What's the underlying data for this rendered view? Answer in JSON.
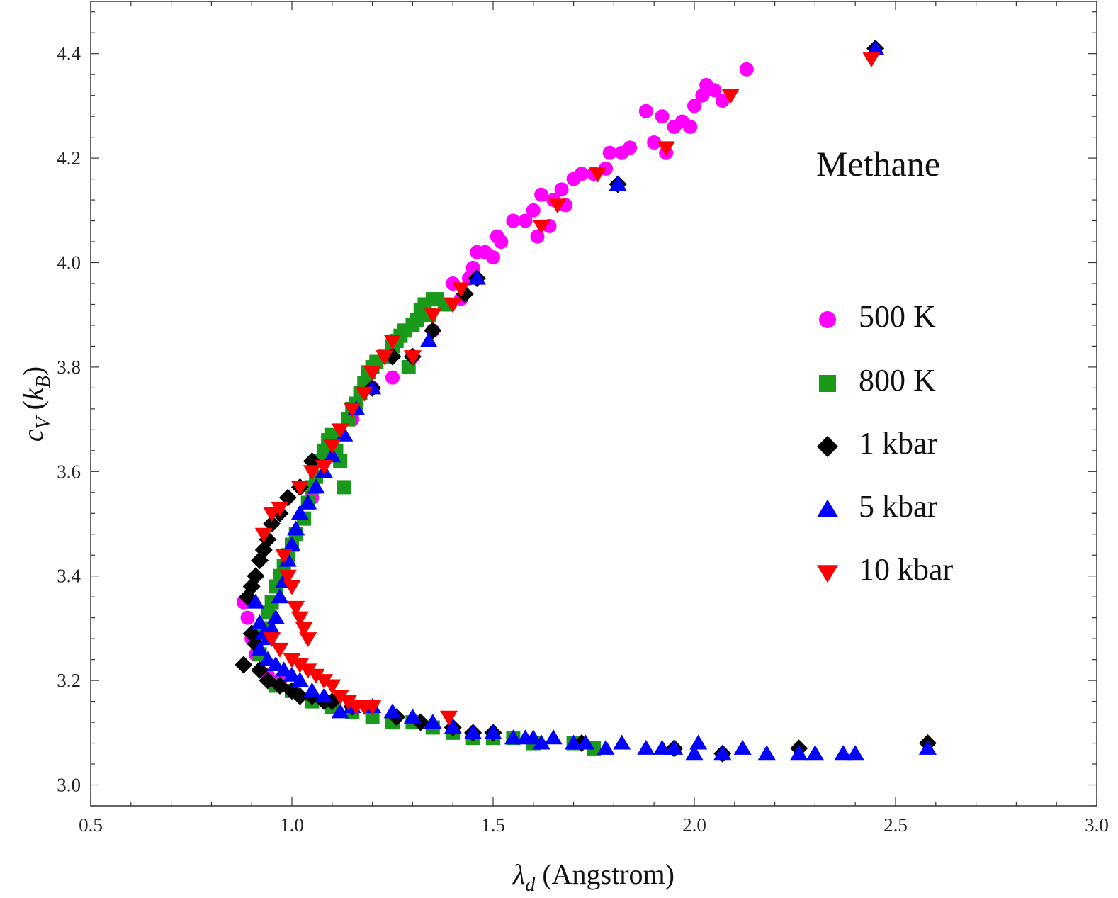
{
  "chart_data": {
    "type": "scatter",
    "title": "",
    "annotation": "Methane",
    "xlabel": {
      "symbol": "λ",
      "sub": "d",
      "rest": " (Angstrom)"
    },
    "ylabel": {
      "symbol": "c",
      "sub": "V",
      "rest_open": " (",
      "k": "k",
      "ksub": "B",
      "rest_close": ")"
    },
    "xlim": [
      0.5,
      3.0
    ],
    "ylim": [
      2.96,
      4.5
    ],
    "x_ticks": [
      {
        "v": 0.5,
        "label": "0.5"
      },
      {
        "v": 1.0,
        "label": "1.0"
      },
      {
        "v": 1.5,
        "label": "1.5"
      },
      {
        "v": 2.0,
        "label": "2.0"
      },
      {
        "v": 2.5,
        "label": "2.5"
      },
      {
        "v": 3.0,
        "label": "3.0"
      }
    ],
    "y_ticks": [
      {
        "v": 3.0,
        "label": "3.0"
      },
      {
        "v": 3.2,
        "label": "3.2"
      },
      {
        "v": 3.4,
        "label": "3.4"
      },
      {
        "v": 3.6,
        "label": "3.6"
      },
      {
        "v": 3.8,
        "label": "3.8"
      },
      {
        "v": 4.0,
        "label": "4.0"
      },
      {
        "v": 4.2,
        "label": "4.2"
      },
      {
        "v": 4.4,
        "label": "4.4"
      }
    ],
    "grid": false,
    "legend_position": "right",
    "series": [
      {
        "name": "500 K",
        "marker": "circle",
        "color": "#ff00ff",
        "points": [
          [
            0.88,
            3.35
          ],
          [
            0.89,
            3.32
          ],
          [
            0.9,
            3.28
          ],
          [
            0.91,
            3.25
          ],
          [
            0.94,
            3.21
          ],
          [
            0.97,
            3.2
          ],
          [
            1.05,
            3.55
          ],
          [
            1.1,
            3.65
          ],
          [
            1.15,
            3.7
          ],
          [
            1.2,
            3.76
          ],
          [
            1.25,
            3.78
          ],
          [
            1.3,
            3.82
          ],
          [
            1.35,
            3.87
          ],
          [
            1.38,
            3.92
          ],
          [
            1.4,
            3.96
          ],
          [
            1.42,
            3.93
          ],
          [
            1.44,
            3.97
          ],
          [
            1.45,
            3.99
          ],
          [
            1.46,
            4.02
          ],
          [
            1.48,
            4.02
          ],
          [
            1.5,
            4.01
          ],
          [
            1.51,
            4.05
          ],
          [
            1.52,
            4.04
          ],
          [
            1.55,
            4.08
          ],
          [
            1.58,
            4.08
          ],
          [
            1.6,
            4.1
          ],
          [
            1.61,
            4.05
          ],
          [
            1.62,
            4.13
          ],
          [
            1.64,
            4.07
          ],
          [
            1.65,
            4.12
          ],
          [
            1.67,
            4.14
          ],
          [
            1.68,
            4.11
          ],
          [
            1.7,
            4.16
          ],
          [
            1.72,
            4.17
          ],
          [
            1.75,
            4.17
          ],
          [
            1.78,
            4.18
          ],
          [
            1.79,
            4.21
          ],
          [
            1.82,
            4.21
          ],
          [
            1.84,
            4.22
          ],
          [
            1.88,
            4.29
          ],
          [
            1.9,
            4.23
          ],
          [
            1.92,
            4.28
          ],
          [
            1.93,
            4.21
          ],
          [
            1.95,
            4.26
          ],
          [
            1.97,
            4.27
          ],
          [
            1.99,
            4.26
          ],
          [
            2.0,
            4.3
          ],
          [
            2.02,
            4.32
          ],
          [
            2.03,
            4.34
          ],
          [
            2.05,
            4.33
          ],
          [
            2.07,
            4.31
          ],
          [
            2.13,
            4.37
          ]
        ]
      },
      {
        "name": "800 K",
        "marker": "square",
        "color": "#1a9a1a",
        "points": [
          [
            0.92,
            3.25
          ],
          [
            0.93,
            3.3
          ],
          [
            0.94,
            3.33
          ],
          [
            0.95,
            3.35
          ],
          [
            0.96,
            3.38
          ],
          [
            0.97,
            3.4
          ],
          [
            0.98,
            3.42
          ],
          [
            0.99,
            3.44
          ],
          [
            1.0,
            3.46
          ],
          [
            1.01,
            3.48
          ],
          [
            1.03,
            3.51
          ],
          [
            1.04,
            3.54
          ],
          [
            1.05,
            3.57
          ],
          [
            1.06,
            3.59
          ],
          [
            1.07,
            3.62
          ],
          [
            1.08,
            3.64
          ],
          [
            1.09,
            3.66
          ],
          [
            1.1,
            3.67
          ],
          [
            1.11,
            3.64
          ],
          [
            1.12,
            3.62
          ],
          [
            1.13,
            3.57
          ],
          [
            1.14,
            3.7
          ],
          [
            1.15,
            3.72
          ],
          [
            1.16,
            3.73
          ],
          [
            1.17,
            3.75
          ],
          [
            1.18,
            3.77
          ],
          [
            1.19,
            3.79
          ],
          [
            1.2,
            3.8
          ],
          [
            1.21,
            3.81
          ],
          [
            1.23,
            3.82
          ],
          [
            1.25,
            3.84
          ],
          [
            1.26,
            3.85
          ],
          [
            1.27,
            3.86
          ],
          [
            1.28,
            3.87
          ],
          [
            1.29,
            3.8
          ],
          [
            1.3,
            3.88
          ],
          [
            1.31,
            3.89
          ],
          [
            1.32,
            3.91
          ],
          [
            1.33,
            3.92
          ],
          [
            1.34,
            3.9
          ],
          [
            1.35,
            3.93
          ],
          [
            1.36,
            3.93
          ],
          [
            1.38,
            3.92
          ],
          [
            0.96,
            3.19
          ],
          [
            1.0,
            3.18
          ],
          [
            1.05,
            3.16
          ],
          [
            1.1,
            3.15
          ],
          [
            1.15,
            3.14
          ],
          [
            1.2,
            3.13
          ],
          [
            1.25,
            3.12
          ],
          [
            1.3,
            3.12
          ],
          [
            1.35,
            3.11
          ],
          [
            1.4,
            3.1
          ],
          [
            1.45,
            3.09
          ],
          [
            1.5,
            3.09
          ],
          [
            1.55,
            3.09
          ],
          [
            1.6,
            3.08
          ],
          [
            1.7,
            3.08
          ],
          [
            1.75,
            3.07
          ]
        ]
      },
      {
        "name": "1 kbar",
        "marker": "diamond",
        "color": "#000000",
        "points": [
          [
            0.88,
            3.23
          ],
          [
            0.89,
            3.36
          ],
          [
            0.9,
            3.38
          ],
          [
            0.91,
            3.4
          ],
          [
            0.92,
            3.43
          ],
          [
            0.93,
            3.45
          ],
          [
            0.94,
            3.47
          ],
          [
            0.95,
            3.5
          ],
          [
            0.97,
            3.52
          ],
          [
            0.99,
            3.55
          ],
          [
            1.02,
            3.57
          ],
          [
            1.05,
            3.62
          ],
          [
            0.9,
            3.29
          ],
          [
            0.91,
            3.27
          ],
          [
            0.92,
            3.22
          ],
          [
            0.94,
            3.2
          ],
          [
            0.97,
            3.19
          ],
          [
            1.0,
            3.18
          ],
          [
            1.02,
            3.17
          ],
          [
            1.05,
            3.17
          ],
          [
            1.08,
            3.16
          ],
          [
            1.1,
            3.16
          ],
          [
            1.15,
            3.15
          ],
          [
            1.2,
            3.76
          ],
          [
            1.25,
            3.82
          ],
          [
            1.3,
            3.82
          ],
          [
            1.35,
            3.87
          ],
          [
            1.43,
            3.94
          ],
          [
            1.46,
            3.97
          ],
          [
            1.26,
            3.13
          ],
          [
            1.32,
            3.12
          ],
          [
            1.4,
            3.11
          ],
          [
            1.45,
            3.1
          ],
          [
            1.5,
            3.1
          ],
          [
            1.72,
            3.08
          ],
          [
            1.95,
            3.07
          ],
          [
            2.07,
            3.06
          ],
          [
            2.26,
            3.07
          ],
          [
            2.58,
            3.08
          ],
          [
            2.45,
            4.41
          ],
          [
            1.81,
            4.15
          ]
        ]
      },
      {
        "name": "5 kbar",
        "marker": "triangle-up",
        "color": "#0000ff",
        "points": [
          [
            0.91,
            3.35
          ],
          [
            0.92,
            3.31
          ],
          [
            0.93,
            3.29
          ],
          [
            0.94,
            3.28
          ],
          [
            0.95,
            3.3
          ],
          [
            0.96,
            3.32
          ],
          [
            0.97,
            3.36
          ],
          [
            0.98,
            3.39
          ],
          [
            0.99,
            3.43
          ],
          [
            1.0,
            3.46
          ],
          [
            1.01,
            3.49
          ],
          [
            1.02,
            3.52
          ],
          [
            1.04,
            3.54
          ],
          [
            1.06,
            3.57
          ],
          [
            1.08,
            3.6
          ],
          [
            1.1,
            3.63
          ],
          [
            1.13,
            3.67
          ],
          [
            1.16,
            3.72
          ],
          [
            1.2,
            3.76
          ],
          [
            0.92,
            3.26
          ],
          [
            0.94,
            3.24
          ],
          [
            0.96,
            3.23
          ],
          [
            0.98,
            3.22
          ],
          [
            1.0,
            3.21
          ],
          [
            1.02,
            3.2
          ],
          [
            1.05,
            3.18
          ],
          [
            1.08,
            3.17
          ],
          [
            1.12,
            3.14
          ],
          [
            1.15,
            3.15
          ],
          [
            1.2,
            3.15
          ],
          [
            1.25,
            3.14
          ],
          [
            1.3,
            3.13
          ],
          [
            1.35,
            3.12
          ],
          [
            1.4,
            3.11
          ],
          [
            1.45,
            3.1
          ],
          [
            1.5,
            3.1
          ],
          [
            1.55,
            3.09
          ],
          [
            1.58,
            3.09
          ],
          [
            1.6,
            3.09
          ],
          [
            1.62,
            3.08
          ],
          [
            1.65,
            3.09
          ],
          [
            1.7,
            3.08
          ],
          [
            1.73,
            3.08
          ],
          [
            1.78,
            3.07
          ],
          [
            1.82,
            3.08
          ],
          [
            1.88,
            3.07
          ],
          [
            1.92,
            3.07
          ],
          [
            1.95,
            3.07
          ],
          [
            2.0,
            3.06
          ],
          [
            2.01,
            3.08
          ],
          [
            2.07,
            3.06
          ],
          [
            2.12,
            3.07
          ],
          [
            2.18,
            3.06
          ],
          [
            2.26,
            3.06
          ],
          [
            2.3,
            3.06
          ],
          [
            2.37,
            3.06
          ],
          [
            2.4,
            3.06
          ],
          [
            2.58,
            3.07
          ],
          [
            1.34,
            3.85
          ],
          [
            1.46,
            3.97
          ],
          [
            1.81,
            4.15
          ],
          [
            2.45,
            4.41
          ]
        ]
      },
      {
        "name": "10 kbar",
        "marker": "triangle-down",
        "color": "#ff0000",
        "points": [
          [
            0.93,
            3.48
          ],
          [
            0.95,
            3.52
          ],
          [
            0.97,
            3.53
          ],
          [
            0.98,
            3.44
          ],
          [
            0.99,
            3.4
          ],
          [
            1.0,
            3.38
          ],
          [
            1.01,
            3.34
          ],
          [
            1.02,
            3.32
          ],
          [
            1.03,
            3.3
          ],
          [
            1.04,
            3.28
          ],
          [
            0.95,
            3.28
          ],
          [
            0.97,
            3.26
          ],
          [
            1.0,
            3.24
          ],
          [
            1.02,
            3.23
          ],
          [
            1.04,
            3.22
          ],
          [
            1.06,
            3.21
          ],
          [
            1.08,
            3.2
          ],
          [
            1.1,
            3.19
          ],
          [
            1.12,
            3.17
          ],
          [
            1.14,
            3.16
          ],
          [
            1.16,
            3.15
          ],
          [
            1.18,
            3.15
          ],
          [
            1.2,
            3.15
          ],
          [
            1.02,
            3.57
          ],
          [
            1.05,
            3.6
          ],
          [
            1.08,
            3.61
          ],
          [
            1.1,
            3.65
          ],
          [
            1.12,
            3.68
          ],
          [
            1.15,
            3.72
          ],
          [
            1.18,
            3.75
          ],
          [
            1.2,
            3.79
          ],
          [
            1.23,
            3.82
          ],
          [
            1.25,
            3.85
          ],
          [
            1.3,
            3.82
          ],
          [
            1.35,
            3.9
          ],
          [
            1.4,
            3.92
          ],
          [
            1.42,
            3.95
          ],
          [
            1.39,
            3.13
          ],
          [
            1.62,
            4.07
          ],
          [
            1.66,
            4.11
          ],
          [
            1.76,
            4.17
          ],
          [
            1.93,
            4.22
          ],
          [
            2.09,
            4.32
          ],
          [
            2.44,
            4.39
          ]
        ]
      }
    ]
  }
}
